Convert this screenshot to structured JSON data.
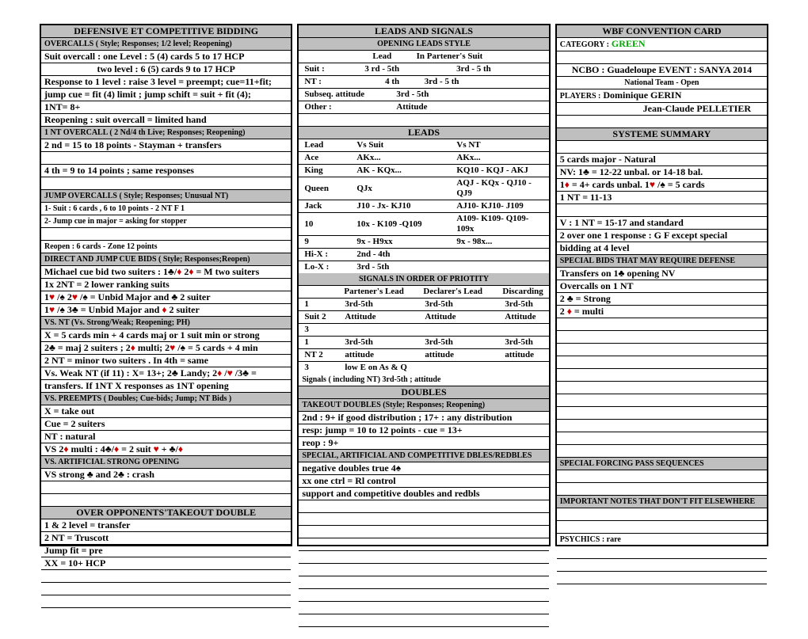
{
  "c1": {
    "t1": "DEFENSIVE ET COMPETITIVE BIDDING",
    "r1": "OVERCALLS ( Style; Responses; 1/2 level; Reopening)",
    "r2": "Suit overcall : one Level : 5 (4) cards  5 to 17 HCP",
    "r3": "two level :  6 (5) cards  9 to 17 HCP",
    "r4": "Response to 1 level : raise 3 level = preempt;  cue=11+fit;",
    "r5": "jump cue = fit (4) limit ; jump schift = suit + fit (4);",
    "r6": "1NT= 8+",
    "r7": "Reopening : suit overcall = limited hand",
    "r8": "1 NT OVERCALL ( 2 Nd/4 th Live; Responses; Reopening)",
    "r9": "2 nd = 15 to 18 points -  Stayman + transfers",
    "r10": "4 th = 9 to 14 points ; same responses",
    "r11": "JUMP OVERCALLS ( Style; Responses; Unusual NT)",
    "r12": "1- Suit : 6 cards , 6 to 10 points - 2 NT F 1",
    "r13": "2- Jump cue in major = asking for stopper",
    "r14": "Reopen : 6 cards - Zone 12 points",
    "r15": "DIRECT AND JUMP CUE BIDS ( Style; Responses;Reopen)",
    "r16a": "Michael cue bid two suiters : 1",
    "r16b": "/",
    "r16c": " 2",
    "r16d": "   = M two suiters",
    "r17": "1x 2NT = 2 lower ranking suits",
    "r18a": "1",
    "r18b": " /",
    "r18c": " 2",
    "r18d": " /",
    "r18e": " = Unbid Major and ",
    "r18f": " 2 suiter",
    "r19a": "1",
    "r19b": " /",
    "r19c": "  3",
    "r19d": " = Unbid Major and ",
    "r19e": "  2 suiter",
    "r20": "VS. NT (Vs. Strong/Weak; Reopening; PH)",
    "r21": "X = 5 cards min + 4 cards maj or 1 suit min or strong",
    "r22a": "2",
    "r22b": " = maj 2 suiters ; 2",
    "r22c": " multi; 2",
    "r22d": " /",
    "r22e": " = 5 cards + 4 min",
    "r23": "2 NT = minor two suiters . In 4th = same",
    "r24a": "Vs. Weak NT (if 11) : X= 13+; 2",
    "r24b": " Landy; 2",
    "r24c": " /",
    "r24d": " /3",
    "r24e": " =",
    "r25": "transfers. If 1NT X responses as 1NT opening",
    "r26": "VS. PREEMPTS ( Doubles; Cue-bids; Jump; NT Bids )",
    "r27": "X = take out",
    "r28": "Cue = 2 suiters",
    "r29": "NT : natural",
    "r30a": "VS 2",
    "r30b": "  multi : 4",
    "r30c": "/",
    "r30d": "  = 2 suit ",
    "r30e": " + ",
    "r30f": "/",
    "r31": "VS. ARTIFICIAL STRONG OPENING",
    "r32a": "VS strong ",
    "r32b": " and 2",
    "r32c": " : crash",
    "t2": "OVER OPPONENTS'TAKEOUT DOUBLE",
    "r33": "1 & 2 level = transfer",
    "r34": "2 NT = Truscott",
    "r35": "Jump fit = pre",
    "r36": "XX = 10+ HCP"
  },
  "c2": {
    "t1": "LEADS AND SIGNALS",
    "h1": "OPENING LEADS STYLE",
    "l1a": "Lead",
    "l1b": "In Partener's Suit",
    "l2a": "Suit :",
    "l2b": "3 rd - 5th",
    "l2c": "3rd - 5 th",
    "l3a": "NT :",
    "l3b": "4 th",
    "l3c": "3rd - 5 th",
    "l4a": "Subseq. attitude",
    "l4b": "3rd - 5th",
    "l5a": "Other :",
    "l5b": "Attitude",
    "t2": "LEADS",
    "ld": [
      [
        "Lead",
        "Vs Suit",
        "Vs NT"
      ],
      [
        "Ace",
        "AKx...",
        "AKx..."
      ],
      [
        "King",
        "AK - KQx...",
        "KQ10 - KQJ - AKJ"
      ],
      [
        "Queen",
        "QJx",
        "AQJ - KQx - QJ10 - QJ9"
      ],
      [
        "Jack",
        "J10 - Jx- KJ10",
        "AJ10- KJ10- J109"
      ],
      [
        "10",
        "10x - K109 -Q109",
        "A109- K109- Q109- 109x"
      ],
      [
        "9",
        "9x - H9xx",
        "9x - 98x..."
      ],
      [
        "Hi-X :",
        "2nd - 4th",
        ""
      ],
      [
        "Lo-X  :",
        "3rd - 5th",
        ""
      ]
    ],
    "t3": "SIGNALS IN ORDER OF PRIOTITY",
    "sg": [
      [
        "",
        "Partener's Lead",
        "Declarer's Lead",
        "Discarding"
      ],
      [
        "1",
        "3rd-5th",
        "3rd-5th",
        "3rd-5th"
      ],
      [
        "Suit 2",
        "Attitude",
        "Attitude",
        "Attitude"
      ],
      [
        "3",
        "",
        "",
        ""
      ],
      [
        "1",
        "3rd-5th",
        "3rd-5th",
        "3rd-5th"
      ],
      [
        "NT 2",
        "attitude",
        "attitude",
        "attitude"
      ],
      [
        "3",
        "low E on As & Q",
        "",
        ""
      ]
    ],
    "sg2": "Signals ( including NT)  3rd-5th ; attitude",
    "t4": "DOUBLES",
    "d1": "TAKEOUT DOUBLES (Style; Responses; Reopening)",
    "d2": "2nd : 9+ if good distribution ; 17+ : any distribution",
    "d3": "resp: jump = 10 to 12 points - cue = 13+",
    "d4": "reop : 9+",
    "d5": "SPECIAL, ARTIFICIAL AND COMPETITIVE DBLES/REDBLES",
    "d6a": "negative doubles true 4",
    "d7": "xx one ctrl = Rl control",
    "d8": "support and  competitive doubles and redbls"
  },
  "c3": {
    "t1": "WBF CONVENTION CARD",
    "r1a": "CATEGORY :",
    "r1b": "  GREEN",
    "r2": "NCBO : Guadeloupe  EVENT :    SANYA  2014",
    "r3": "National Team - Open",
    "r4a": "PLAYERS :",
    "r4b": "  Dominique GERIN",
    "r5": "Jean-Claude  PELLETIER",
    "t2": "SYSTEME SUMMARY",
    "r6": "5 cards major - Natural",
    "r7a": "NV: 1",
    "r7b": " = 12-22 unbal. or 14-18 bal.",
    "r8a": "1",
    "r8b": " = 4+ cards unbal. 1",
    "r8c": " /",
    "r8d": "  = 5 cards",
    "r9": "1 NT = 11-13",
    "r10": "V : 1 NT = 15-17 and standard",
    "r11": "2 over one 1 response : G F except  special",
    "r12": " bidding at 4 level",
    "t3": "SPECIAL BIDS THAT MAY REQUIRE DEFENSE",
    "r13a": "Transfers on 1",
    "r13b": "  opening NV",
    "r14": "Overcalls on 1 NT",
    "r15a": " 2 ",
    "r15b": "  =   Strong",
    "r16a": " 2 ",
    "r16b": "   = multi",
    "t4": "SPECIAL FORCING PASS SEQUENCES",
    "t5": "IMPORTANT NOTES THAT DON'T FIT ELSEWHERE",
    "r17": "PSYCHICS : rare"
  }
}
